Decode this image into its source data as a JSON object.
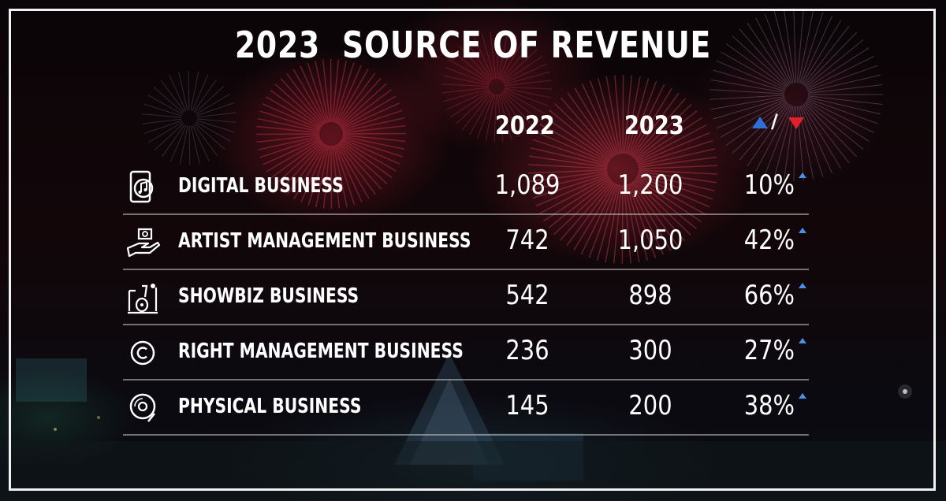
{
  "chart_data": {
    "type": "table",
    "title": "2023  SOURCE OF REVENUE",
    "columns": [
      "2022",
      "2023"
    ],
    "rows": [
      {
        "label": "DIGITAL BUSINESS",
        "icon": "music-phone-icon",
        "v2022": "1,089",
        "v2023": "1,200",
        "change": "10%",
        "direction": "up"
      },
      {
        "label": "ARTIST MANAGEMENT BUSINESS",
        "icon": "hand-giving-icon",
        "v2022": "742",
        "v2023": "1,050",
        "change": "42%",
        "direction": "up"
      },
      {
        "label": "SHOWBIZ BUSINESS",
        "icon": "stage-guitar-icon",
        "v2022": "542",
        "v2023": "898",
        "change": "66%",
        "direction": "up"
      },
      {
        "label": "RIGHT MANAGEMENT BUSINESS",
        "icon": "copyright-icon",
        "v2022": "236",
        "v2023": "300",
        "change": "27%",
        "direction": "up"
      },
      {
        "label": "PHYSICAL BUSINESS",
        "icon": "disc-icon",
        "v2022": "145",
        "v2023": "200",
        "change": "38%",
        "direction": "up"
      }
    ],
    "legend": {
      "up_color": "#2f6fd8",
      "down_color": "#e0202a",
      "separator": "/"
    }
  }
}
